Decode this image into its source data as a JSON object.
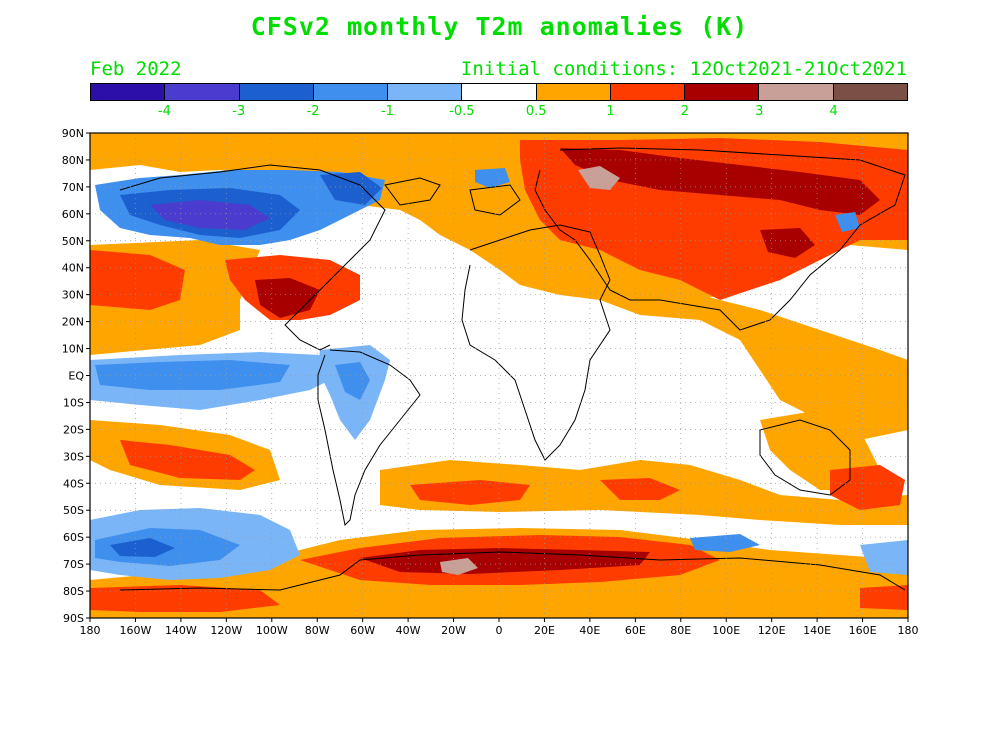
{
  "title": "CFSv2 monthly T2m anomalies (K)",
  "month": "Feb 2022",
  "initial_conditions": "Initial conditions: 12Oct2021-21Oct2021",
  "legend": {
    "colors": [
      "#2b0fa8",
      "#4a3ccf",
      "#1c5fcf",
      "#3f8fee",
      "#7ab6f7",
      "#ffffff",
      "#ffa500",
      "#ff3c00",
      "#a80000",
      "#c8a098",
      "#7a4f45"
    ],
    "labels": [
      "-4",
      "-3",
      "-2",
      "-1",
      "-0.5",
      "0.5",
      "1",
      "2",
      "3",
      "4"
    ]
  },
  "axes": {
    "lat_labels": [
      "90N",
      "80N",
      "70N",
      "60N",
      "50N",
      "40N",
      "30N",
      "20N",
      "10N",
      "EQ",
      "10S",
      "20S",
      "30S",
      "40S",
      "50S",
      "60S",
      "70S",
      "80S",
      "90S"
    ],
    "lon_labels": [
      "180",
      "160W",
      "140W",
      "120W",
      "100W",
      "80W",
      "60W",
      "40W",
      "20W",
      "0",
      "20E",
      "40E",
      "60E",
      "80E",
      "100E",
      "120E",
      "140E",
      "160E",
      "180"
    ]
  }
}
